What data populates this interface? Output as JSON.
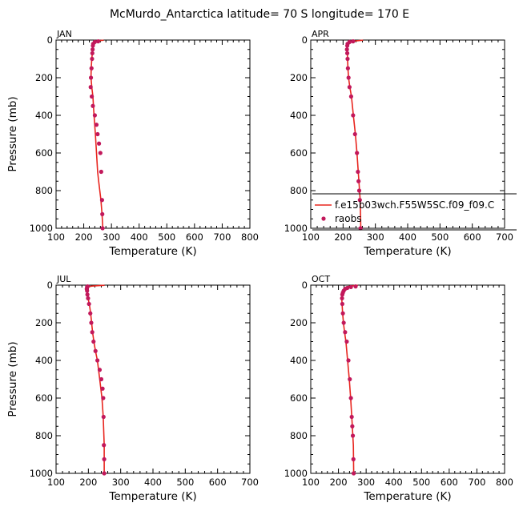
{
  "figure_title": "McMurdo_Antarctica   latitude= 70 S longitude= 170 E",
  "legend": {
    "model_label": "f.e15b03wch.F55W5SC.f09_f09.C",
    "obs_label": "raobs",
    "placement": "lower-right of APR panel"
  },
  "colors": {
    "model_line": "#e8261f",
    "obs_marker": "#c2185b",
    "axis": "#000000"
  },
  "chart_data": [
    {
      "type": "line",
      "title": "JAN",
      "xlabel": "Temperature (K)",
      "ylabel": "Pressure (mb)",
      "xlim": [
        100,
        800
      ],
      "ylim": [
        1000,
        0
      ],
      "x_ticks": [
        "100",
        "200",
        "300",
        "400",
        "500",
        "600",
        "700",
        "800"
      ],
      "y_ticks": [
        "0",
        "200",
        "400",
        "600",
        "800",
        "1000"
      ],
      "series": [
        {
          "name": "f.e15b03wch.F55W5SC.f09_f09.C",
          "kind": "line",
          "x": [
            272,
            245,
            236,
            233,
            232,
            231,
            231,
            229,
            227,
            226,
            229,
            233,
            237,
            242,
            246,
            250,
            254,
            258,
            262,
            266,
            269
          ],
          "y": [
            1,
            5,
            10,
            20,
            30,
            50,
            70,
            100,
            150,
            200,
            250,
            300,
            400,
            500,
            600,
            700,
            750,
            800,
            850,
            925,
            1000
          ]
        },
        {
          "name": "raobs",
          "kind": "scatter",
          "x": [
            252,
            240,
            234,
            233,
            232,
            231,
            230,
            228,
            226,
            225,
            229,
            233,
            240,
            246,
            250,
            255,
            260,
            263,
            266,
            267,
            268
          ],
          "y": [
            7,
            10,
            20,
            30,
            50,
            70,
            100,
            150,
            200,
            250,
            300,
            350,
            400,
            450,
            500,
            550,
            600,
            700,
            850,
            925,
            1000
          ]
        }
      ]
    },
    {
      "type": "line",
      "title": "APR",
      "xlabel": "Temperature (K)",
      "ylabel": "",
      "xlim": [
        100,
        700
      ],
      "ylim": [
        1000,
        0
      ],
      "x_ticks": [
        "100",
        "200",
        "300",
        "400",
        "500",
        "600",
        "700"
      ],
      "y_ticks": [
        "0",
        "200",
        "400",
        "600",
        "800",
        "1000"
      ],
      "series": [
        {
          "name": "f.e15b03wch.F55W5SC.f09_f09.C",
          "kind": "line",
          "x": [
            262,
            236,
            222,
            215,
            212,
            212,
            213,
            214,
            215,
            217,
            221,
            226,
            232,
            238,
            243,
            247,
            249,
            251,
            253,
            255
          ],
          "y": [
            1,
            5,
            10,
            20,
            30,
            50,
            70,
            100,
            150,
            200,
            250,
            300,
            400,
            500,
            600,
            700,
            750,
            800,
            850,
            1000
          ]
        },
        {
          "name": "raobs",
          "kind": "scatter",
          "x": [
            231,
            220,
            214,
            213,
            212,
            213,
            214,
            215,
            217,
            220,
            225,
            231,
            237,
            243,
            246,
            248,
            250,
            252,
            254
          ],
          "y": [
            7,
            10,
            20,
            30,
            50,
            70,
            100,
            150,
            200,
            250,
            300,
            400,
            500,
            600,
            700,
            750,
            800,
            850,
            1000
          ]
        }
      ]
    },
    {
      "type": "line",
      "title": "JUL",
      "xlabel": "Temperature (K)",
      "ylabel": "Pressure (mb)",
      "xlim": [
        100,
        700
      ],
      "ylim": [
        1000,
        0
      ],
      "x_ticks": [
        "100",
        "200",
        "300",
        "400",
        "500",
        "600",
        "700"
      ],
      "y_ticks": [
        "0",
        "200",
        "400",
        "600",
        "800",
        "1000"
      ],
      "series": [
        {
          "name": "f.e15b03wch.F55W5SC.f09_f09.C",
          "kind": "line",
          "x": [
            250,
            210,
            198,
            195,
            196,
            197,
            199,
            203,
            207,
            210,
            213,
            217,
            222,
            228,
            235,
            242,
            246,
            248,
            249,
            249,
            249
          ],
          "y": [
            1,
            5,
            10,
            20,
            30,
            50,
            70,
            100,
            150,
            200,
            250,
            300,
            350,
            400,
            500,
            600,
            700,
            800,
            850,
            925,
            1000
          ]
        },
        {
          "name": "raobs",
          "kind": "scatter",
          "x": [
            198,
            196,
            195,
            196,
            197,
            199,
            202,
            206,
            209,
            212,
            216,
            222,
            228,
            235,
            240,
            244,
            246,
            247,
            248,
            249,
            249
          ],
          "y": [
            7,
            10,
            20,
            30,
            50,
            70,
            100,
            150,
            200,
            250,
            300,
            350,
            400,
            450,
            500,
            550,
            600,
            700,
            850,
            925,
            1000
          ]
        }
      ]
    },
    {
      "type": "line",
      "title": "OCT",
      "xlabel": "Temperature (K)",
      "ylabel": "",
      "xlim": [
        100,
        800
      ],
      "ylim": [
        1000,
        0
      ],
      "x_ticks": [
        "100",
        "200",
        "300",
        "400",
        "500",
        "600",
        "700",
        "800"
      ],
      "y_ticks": [
        "0",
        "200",
        "400",
        "600",
        "800",
        "1000"
      ],
      "series": [
        {
          "name": "f.e15b03wch.F55W5SC.f09_f09.C",
          "kind": "line",
          "x": [
            270,
            242,
            228,
            220,
            216,
            213,
            212,
            213,
            215,
            218,
            222,
            227,
            233,
            239,
            244,
            248,
            250,
            252,
            254,
            255
          ],
          "y": [
            1,
            5,
            10,
            20,
            30,
            50,
            70,
            100,
            150,
            200,
            250,
            300,
            400,
            500,
            600,
            700,
            750,
            800,
            850,
            1000
          ]
        },
        {
          "name": "raobs",
          "kind": "scatter",
          "x": [
            262,
            245,
            232,
            224,
            219,
            216,
            214,
            213,
            214,
            216,
            219,
            224,
            230,
            236,
            241,
            245,
            248,
            250,
            252,
            254,
            255
          ],
          "y": [
            7,
            10,
            15,
            20,
            30,
            40,
            50,
            70,
            100,
            150,
            200,
            250,
            300,
            400,
            500,
            600,
            700,
            750,
            800,
            925,
            1000
          ]
        }
      ]
    }
  ]
}
